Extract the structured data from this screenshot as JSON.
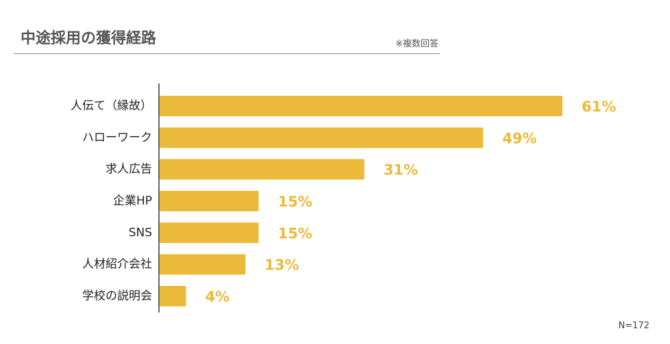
{
  "header": {
    "title": "中途採用の獲得経路",
    "note": "※複数回答"
  },
  "footnote": "N=172",
  "colors": {
    "bar": "#ECBA3A",
    "value_label": "#ECBA3A",
    "category_label": "#222222",
    "axis": "#333333"
  },
  "chart_data": {
    "type": "bar",
    "orientation": "horizontal",
    "categories": [
      "人伝て（縁故）",
      "ハローワーク",
      "求人広告",
      "企業HP",
      "SNS",
      "人材紹介会社",
      "学校の説明会"
    ],
    "values": [
      61,
      49,
      31,
      15,
      15,
      13,
      4
    ],
    "value_labels": [
      "61%",
      "49%",
      "31%",
      "15%",
      "15%",
      "13%",
      "4%"
    ],
    "unit": "%",
    "xlim": [
      0,
      61
    ],
    "grid": false,
    "legend": "none"
  }
}
